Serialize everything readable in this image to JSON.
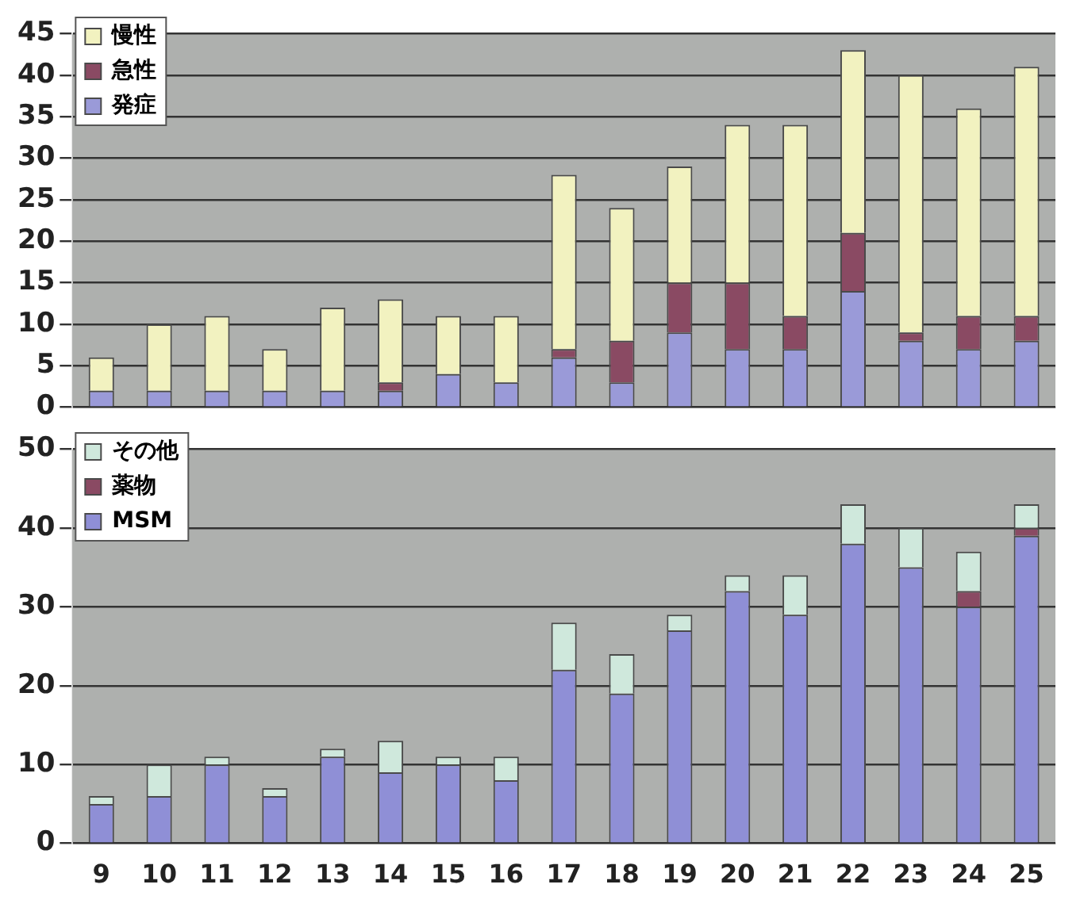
{
  "chart_data": [
    {
      "type": "bar",
      "stacked": true,
      "categories": [
        "9",
        "10",
        "11",
        "12",
        "13",
        "14",
        "15",
        "16",
        "17",
        "18",
        "19",
        "20",
        "21",
        "22",
        "23",
        "24",
        "25"
      ],
      "series": [
        {
          "name": "発症",
          "color": "#9a9ad8",
          "values": [
            2,
            2,
            2,
            2,
            2,
            2,
            4,
            3,
            6,
            3,
            9,
            7,
            7,
            14,
            8,
            7,
            8
          ]
        },
        {
          "name": "急性",
          "color": "#8a4a63",
          "values": [
            0,
            0,
            0,
            0,
            0,
            1,
            0,
            0,
            1,
            5,
            6,
            8,
            4,
            7,
            1,
            4,
            3
          ]
        },
        {
          "name": "慢性",
          "color": "#f2f2c0",
          "values": [
            4,
            8,
            9,
            5,
            10,
            10,
            7,
            8,
            21,
            16,
            14,
            19,
            23,
            22,
            31,
            25,
            30
          ]
        }
      ],
      "ylim": [
        0,
        45
      ],
      "yticks": [
        0,
        5,
        10,
        15,
        20,
        25,
        30,
        35,
        40,
        45
      ],
      "grid": "y",
      "legend": "top left",
      "tick_labels": "y"
    },
    {
      "type": "bar",
      "stacked": true,
      "categories": [
        "9",
        "10",
        "11",
        "12",
        "13",
        "14",
        "15",
        "16",
        "17",
        "18",
        "19",
        "20",
        "21",
        "22",
        "23",
        "24",
        "25"
      ],
      "series": [
        {
          "name": "MSM",
          "color": "#8f8fd6",
          "values": [
            5,
            6,
            10,
            6,
            11,
            9,
            10,
            8,
            22,
            19,
            27,
            32,
            29,
            38,
            35,
            30,
            39
          ]
        },
        {
          "name": "薬物",
          "color": "#8a4a63",
          "values": [
            0,
            0,
            0,
            0,
            0,
            0,
            0,
            0,
            0,
            0,
            0,
            0,
            0,
            0,
            0,
            2,
            1
          ]
        },
        {
          "name": "その他",
          "color": "#cfe8dc",
          "values": [
            1,
            4,
            1,
            1,
            1,
            4,
            1,
            3,
            6,
            5,
            2,
            2,
            5,
            5,
            5,
            5,
            3
          ]
        }
      ],
      "ylim": [
        0,
        50
      ],
      "yticks": [
        0,
        10,
        20,
        30,
        40,
        50
      ],
      "grid": "y",
      "legend": "top left"
    }
  ]
}
